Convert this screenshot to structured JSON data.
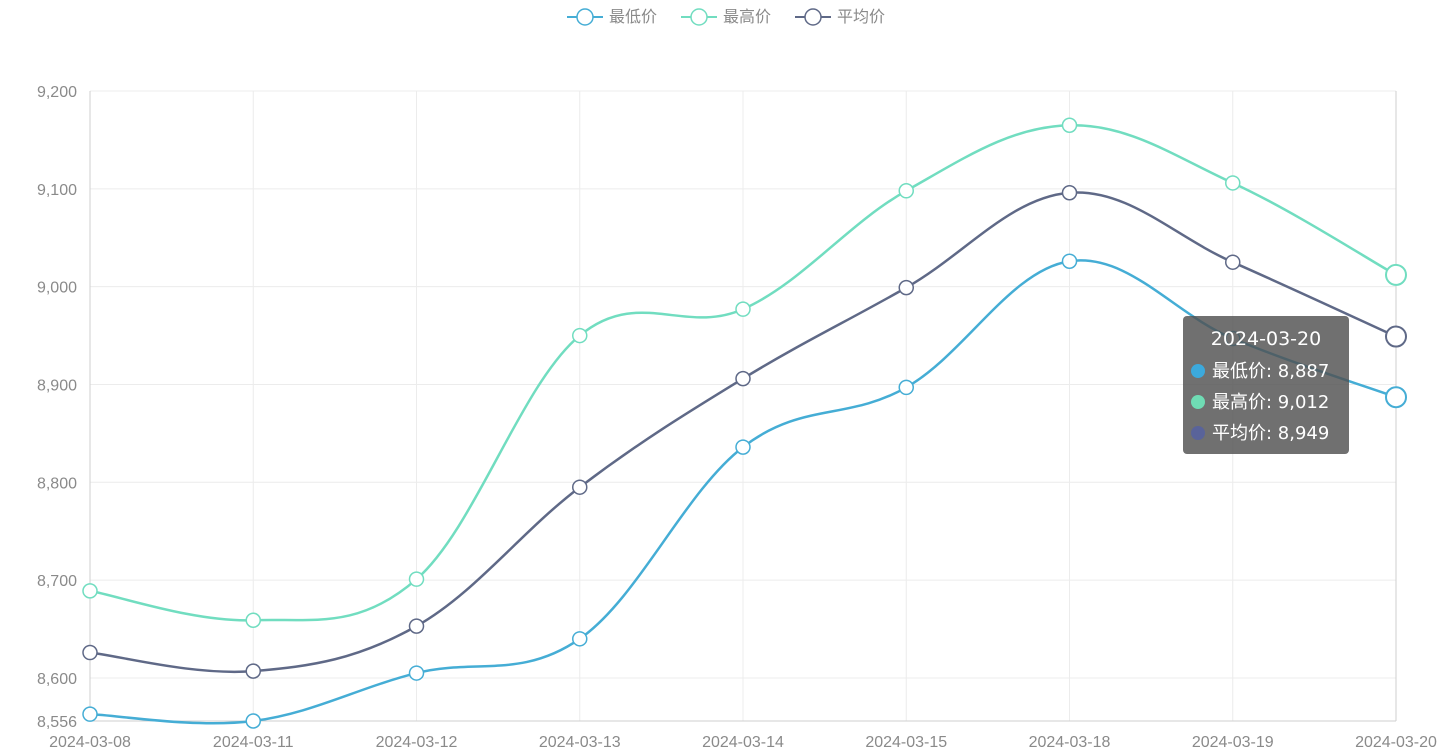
{
  "chart_data": {
    "type": "line",
    "smooth": true,
    "categories": [
      "2024-03-08",
      "2024-03-11",
      "2024-03-12",
      "2024-03-13",
      "2024-03-14",
      "2024-03-15",
      "2024-03-18",
      "2024-03-19",
      "2024-03-20"
    ],
    "series": [
      {
        "name": "最低价",
        "color": "#45add5",
        "values": [
          8563,
          8556,
          8605,
          8640,
          8836,
          8897,
          9026,
          8947,
          8887
        ]
      },
      {
        "name": "最高价",
        "color": "#71ddc0",
        "values": [
          8689,
          8659,
          8701,
          8950,
          8977,
          9098,
          9165,
          9106,
          9012
        ]
      },
      {
        "name": "平均价",
        "color": "#5f6987",
        "values": [
          8626,
          8607,
          8653,
          8795,
          8906,
          8999,
          9096,
          9025,
          8949
        ]
      }
    ],
    "ylim": [
      8556,
      9200
    ],
    "yticks": [
      8556,
      8600,
      8700,
      8800,
      8900,
      9000,
      9100,
      9200
    ],
    "ytick_labels": [
      "8,556",
      "8,600",
      "8,700",
      "8,800",
      "8,900",
      "9,000",
      "9,100",
      "9,200"
    ],
    "grid": true,
    "legend_position": "top-center",
    "highlighted_category_index": 8
  },
  "tooltip": {
    "title": "2024-03-20",
    "rows": [
      {
        "label": "最低价: 8,887",
        "color": "#3ca9dc"
      },
      {
        "label": "最高价: 9,012",
        "color": "#6fdcb4"
      },
      {
        "label": "平均价: 8,949",
        "color": "#59639a"
      }
    ]
  }
}
